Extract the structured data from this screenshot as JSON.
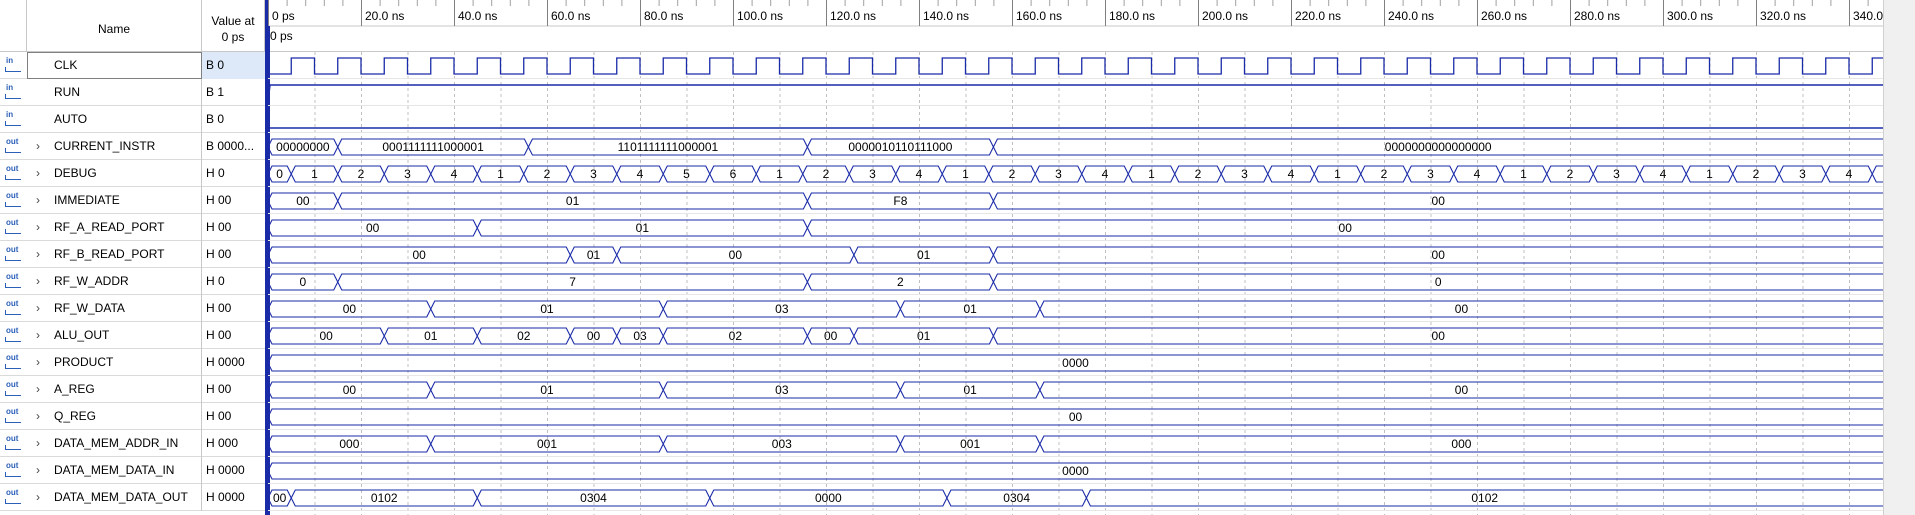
{
  "header": {
    "name_label": "Name",
    "value_label": "Value at\n0 ps"
  },
  "timeline": {
    "ticks": [
      "0 ps",
      "20.0 ns",
      "40.0 ns",
      "60.0 ns",
      "80.0 ns",
      "100.0 ns",
      "120.0 ns",
      "140.0 ns",
      "160.0 ns",
      "180.0 ns",
      "200.0 ns",
      "220.0 ns",
      "240.0 ns",
      "260.0 ns",
      "280.0 ns",
      "300.0 ns",
      "320.0 ns",
      "340.0 ns"
    ],
    "cursor_label": "0 ps",
    "ns_per_tick": 20,
    "clock_period_ns": 10
  },
  "colors": {
    "wave": "#1a2ba8",
    "selection": "#dde9f8",
    "icon": "#2b5fb8",
    "grid": "#c0c0c0"
  },
  "signals": [
    {
      "icon": "in",
      "name": "CLK",
      "value": "B 0",
      "kind": "clock",
      "expandable": false
    },
    {
      "icon": "in",
      "name": "RUN",
      "value": "B 1",
      "kind": "high",
      "expandable": false
    },
    {
      "icon": "in",
      "name": "AUTO",
      "value": "B 0",
      "kind": "low",
      "expandable": false
    },
    {
      "icon": "out",
      "name": "CURRENT_INSTR",
      "value": "B 0000...",
      "kind": "bus",
      "expandable": true,
      "segments": [
        [
          0,
          15,
          "0000000000000000"
        ],
        [
          15,
          56,
          "0001111111000001"
        ],
        [
          56,
          116,
          "1101111111000001"
        ],
        [
          116,
          156,
          "0000010110111000"
        ],
        [
          156,
          360,
          "0000000000000000"
        ]
      ]
    },
    {
      "icon": "out",
      "name": "DEBUG",
      "value": "H 0",
      "kind": "bus",
      "expandable": true,
      "segments": [
        [
          0,
          5,
          "0"
        ],
        [
          5,
          15,
          "1"
        ],
        [
          15,
          25,
          "2"
        ],
        [
          25,
          35,
          "3"
        ],
        [
          35,
          45,
          "4"
        ],
        [
          45,
          55,
          "1"
        ],
        [
          55,
          65,
          "2"
        ],
        [
          65,
          75,
          "3"
        ],
        [
          75,
          85,
          "4"
        ],
        [
          85,
          95,
          "5"
        ],
        [
          95,
          105,
          "6"
        ],
        [
          105,
          115,
          "1"
        ],
        [
          115,
          125,
          "2"
        ],
        [
          125,
          135,
          "3"
        ],
        [
          135,
          145,
          "4"
        ],
        [
          145,
          155,
          "1"
        ],
        [
          155,
          165,
          "2"
        ],
        [
          165,
          175,
          "3"
        ],
        [
          175,
          185,
          "4"
        ],
        [
          185,
          195,
          "1"
        ],
        [
          195,
          205,
          "2"
        ],
        [
          205,
          215,
          "3"
        ],
        [
          215,
          225,
          "4"
        ],
        [
          225,
          235,
          "1"
        ],
        [
          235,
          245,
          "2"
        ],
        [
          245,
          255,
          "3"
        ],
        [
          255,
          265,
          "4"
        ],
        [
          265,
          275,
          "1"
        ],
        [
          275,
          285,
          "2"
        ],
        [
          285,
          295,
          "3"
        ],
        [
          295,
          305,
          "4"
        ],
        [
          305,
          315,
          "1"
        ],
        [
          315,
          325,
          "2"
        ],
        [
          325,
          335,
          "3"
        ],
        [
          335,
          345,
          "4"
        ],
        [
          345,
          355,
          "1"
        ],
        [
          355,
          360,
          "2"
        ]
      ]
    },
    {
      "icon": "out",
      "name": "IMMEDIATE",
      "value": "H 00",
      "kind": "bus",
      "expandable": true,
      "segments": [
        [
          0,
          15,
          "00"
        ],
        [
          15,
          116,
          "01"
        ],
        [
          116,
          156,
          "F8"
        ],
        [
          156,
          360,
          "00"
        ]
      ]
    },
    {
      "icon": "out",
      "name": "RF_A_READ_PORT",
      "value": "H 00",
      "kind": "bus",
      "expandable": true,
      "segments": [
        [
          0,
          45,
          "00"
        ],
        [
          45,
          116,
          "01"
        ],
        [
          116,
          360,
          "00"
        ]
      ]
    },
    {
      "icon": "out",
      "name": "RF_B_READ_PORT",
      "value": "H 00",
      "kind": "bus",
      "expandable": true,
      "segments": [
        [
          0,
          65,
          "00"
        ],
        [
          65,
          75,
          "01"
        ],
        [
          75,
          126,
          "00"
        ],
        [
          126,
          156,
          "01"
        ],
        [
          156,
          360,
          "00"
        ]
      ]
    },
    {
      "icon": "out",
      "name": "RF_W_ADDR",
      "value": "H 0",
      "kind": "bus",
      "expandable": true,
      "segments": [
        [
          0,
          15,
          "0"
        ],
        [
          15,
          116,
          "7"
        ],
        [
          116,
          156,
          "2"
        ],
        [
          156,
          360,
          "0"
        ]
      ]
    },
    {
      "icon": "out",
      "name": "RF_W_DATA",
      "value": "H 00",
      "kind": "bus",
      "expandable": true,
      "segments": [
        [
          0,
          35,
          "00"
        ],
        [
          35,
          85,
          "01"
        ],
        [
          85,
          136,
          "03"
        ],
        [
          136,
          166,
          "01"
        ],
        [
          166,
          360,
          "00"
        ]
      ]
    },
    {
      "icon": "out",
      "name": "ALU_OUT",
      "value": "H 00",
      "kind": "bus",
      "expandable": true,
      "segments": [
        [
          0,
          25,
          "00"
        ],
        [
          25,
          45,
          "01"
        ],
        [
          45,
          65,
          "02"
        ],
        [
          65,
          75,
          "00"
        ],
        [
          75,
          85,
          "03"
        ],
        [
          85,
          116,
          "02"
        ],
        [
          116,
          126,
          "00"
        ],
        [
          126,
          156,
          "01"
        ],
        [
          156,
          360,
          "00"
        ]
      ]
    },
    {
      "icon": "out",
      "name": "PRODUCT",
      "value": "H 0000",
      "kind": "bus",
      "expandable": true,
      "segments": [
        [
          0,
          360,
          "0000"
        ]
      ]
    },
    {
      "icon": "out",
      "name": "A_REG",
      "value": "H 00",
      "kind": "bus",
      "expandable": true,
      "segments": [
        [
          0,
          35,
          "00"
        ],
        [
          35,
          85,
          "01"
        ],
        [
          85,
          136,
          "03"
        ],
        [
          136,
          166,
          "01"
        ],
        [
          166,
          360,
          "00"
        ]
      ]
    },
    {
      "icon": "out",
      "name": "Q_REG",
      "value": "H 00",
      "kind": "bus",
      "expandable": true,
      "segments": [
        [
          0,
          360,
          "00"
        ]
      ]
    },
    {
      "icon": "out",
      "name": "DATA_MEM_ADDR_IN",
      "value": "H 000",
      "kind": "bus",
      "expandable": true,
      "segments": [
        [
          0,
          35,
          "000"
        ],
        [
          35,
          85,
          "001"
        ],
        [
          85,
          136,
          "003"
        ],
        [
          136,
          166,
          "001"
        ],
        [
          166,
          360,
          "000"
        ]
      ]
    },
    {
      "icon": "out",
      "name": "DATA_MEM_DATA_IN",
      "value": "H 0000",
      "kind": "bus",
      "expandable": true,
      "segments": [
        [
          0,
          360,
          "0000"
        ]
      ]
    },
    {
      "icon": "out",
      "name": "DATA_MEM_DATA_OUT",
      "value": "H 0000",
      "kind": "bus",
      "expandable": true,
      "segments": [
        [
          0,
          5,
          "0000"
        ],
        [
          5,
          45,
          "0102"
        ],
        [
          45,
          95,
          "0304"
        ],
        [
          95,
          146,
          "0000"
        ],
        [
          146,
          176,
          "0304"
        ],
        [
          176,
          360,
          "0102"
        ]
      ]
    }
  ]
}
